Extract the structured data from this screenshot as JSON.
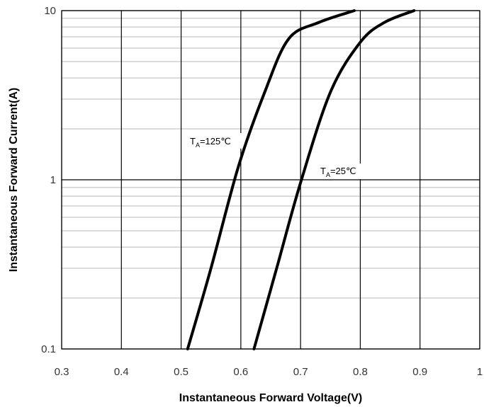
{
  "chart_data": {
    "type": "line",
    "xlabel": "Instantaneous Forward Voltage(V)",
    "ylabel": "Instantaneous Forward Current(A)",
    "xlim": [
      0.3,
      1.0
    ],
    "ylim": [
      0.1,
      10
    ],
    "y_scale": "log",
    "grid": true,
    "x_ticks": [
      "0.3",
      "0.4",
      "0.5",
      "0.6",
      "0.7",
      "0.8",
      "0.9",
      "1"
    ],
    "y_ticks": [
      "0.1",
      "1",
      "10"
    ],
    "series": [
      {
        "label_main": "T",
        "label_sub": "A",
        "label_rest": "=125℃",
        "x": [
          0.511,
          0.55,
          0.596,
          0.64,
          0.68,
          0.73,
          0.79
        ],
        "y": [
          0.1,
          0.3,
          1.2,
          3.3,
          6.8,
          8.5,
          10
        ]
      },
      {
        "label_main": "T",
        "label_sub": "A",
        "label_rest": "=25℃",
        "x": [
          0.622,
          0.66,
          0.7,
          0.75,
          0.8,
          0.84,
          0.89
        ],
        "y": [
          0.1,
          0.3,
          0.96,
          3.3,
          6.5,
          8.5,
          10
        ]
      }
    ]
  }
}
